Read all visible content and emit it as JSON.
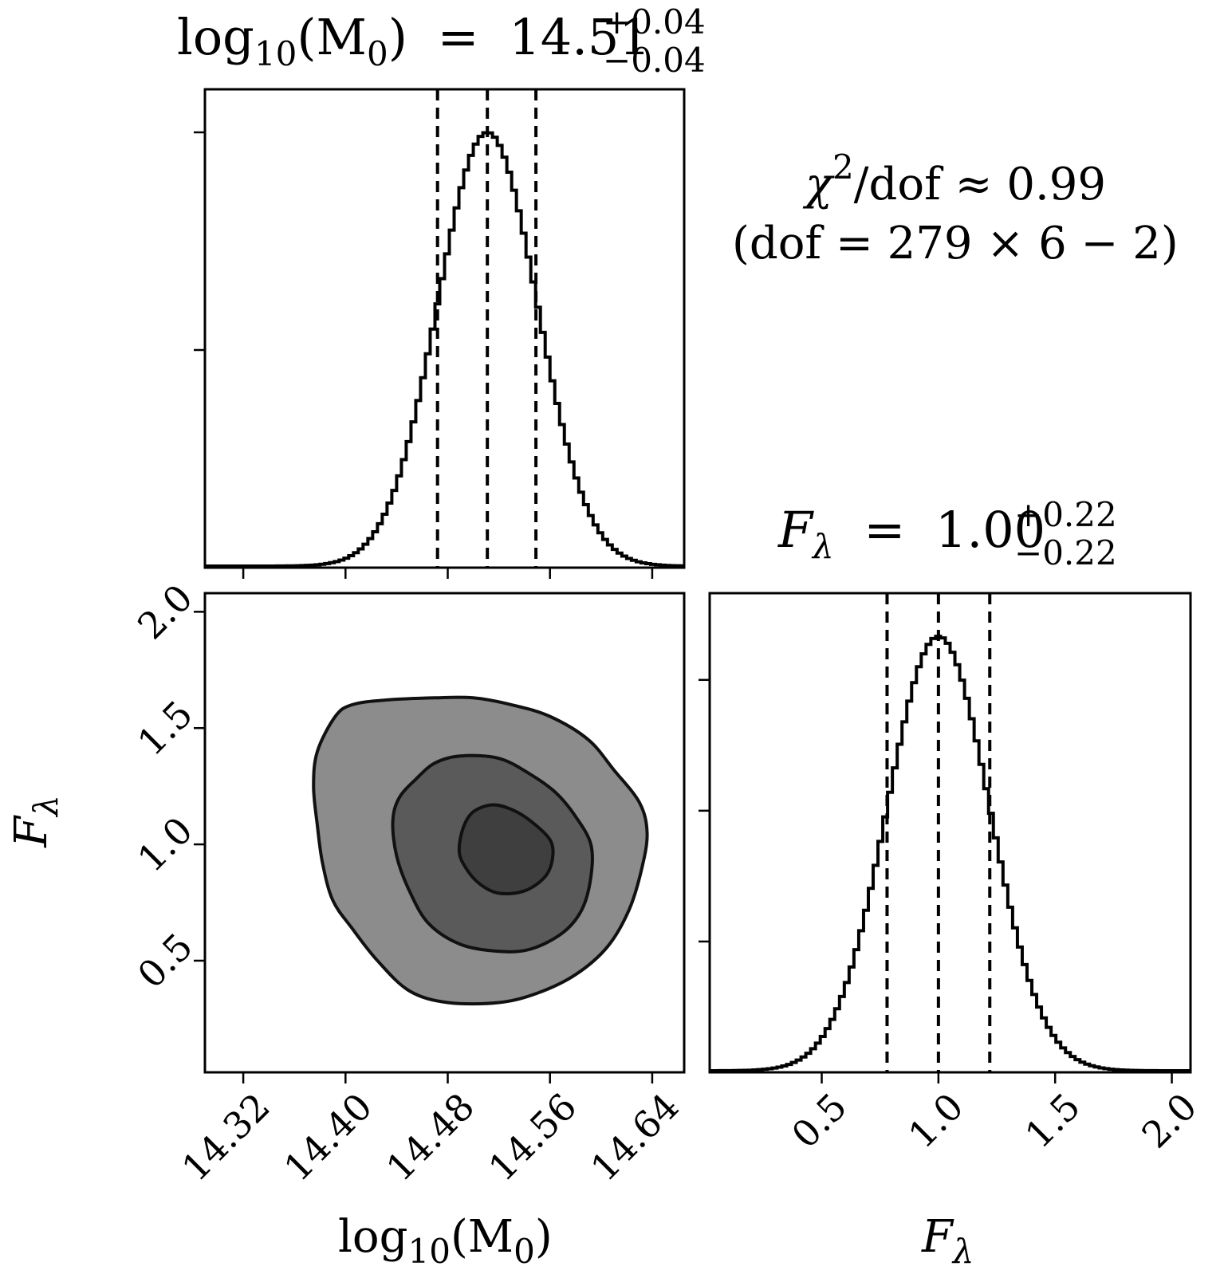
{
  "chart_data": {
    "type": "corner",
    "parameters": [
      {
        "key": "logM0",
        "label": "log10(M0)",
        "label_base": "log",
        "label_base_sub": "10",
        "label_arg": "(M",
        "label_arg_sub": "0",
        "label_close": ")",
        "axis_range": [
          14.29,
          14.665
        ],
        "ticks": [
          14.32,
          14.4,
          14.48,
          14.56,
          14.64
        ],
        "tick_labels": [
          "14.32",
          "14.40",
          "14.48",
          "14.56",
          "14.64"
        ],
        "median": 14.51,
        "quantiles": [
          14.472,
          14.511,
          14.549
        ],
        "title_value": "14.51",
        "err_plus": "+0.04",
        "err_minus": "−0.04",
        "marginal_mean": 14.511,
        "marginal_sigma": 0.039
      },
      {
        "key": "F_lambda",
        "label": "F_λ",
        "label_base": "F",
        "label_sub": "λ",
        "axis_range": [
          0.02,
          2.08
        ],
        "ticks": [
          0.5,
          1.0,
          1.5,
          2.0
        ],
        "tick_labels": [
          "0.5",
          "1.0",
          "1.5",
          "2.0"
        ],
        "median": 1.0,
        "quantiles": [
          0.78,
          1.0,
          1.22
        ],
        "title_value": "1.00",
        "err_plus": "+0.22",
        "err_minus": "−0.22",
        "marginal_mean": 1.0,
        "marginal_sigma": 0.22
      }
    ],
    "joint": {
      "x": "logM0",
      "y": "F_lambda",
      "contour_levels": 3,
      "fill_colors": [
        "#8c8c8c",
        "#5a5a5a",
        "#3f3f3f"
      ],
      "contours": [
        [
          [
            14.392,
            1.55
          ],
          [
            14.405,
            1.6
          ],
          [
            14.43,
            1.62
          ],
          [
            14.47,
            1.63
          ],
          [
            14.5,
            1.63
          ],
          [
            14.53,
            1.6
          ],
          [
            14.56,
            1.55
          ],
          [
            14.59,
            1.45
          ],
          [
            14.61,
            1.32
          ],
          [
            14.63,
            1.18
          ],
          [
            14.636,
            1.05
          ],
          [
            14.632,
            0.9
          ],
          [
            14.622,
            0.72
          ],
          [
            14.605,
            0.56
          ],
          [
            14.58,
            0.44
          ],
          [
            14.55,
            0.36
          ],
          [
            14.52,
            0.32
          ],
          [
            14.48,
            0.32
          ],
          [
            14.45,
            0.37
          ],
          [
            14.425,
            0.5
          ],
          [
            14.405,
            0.64
          ],
          [
            14.39,
            0.76
          ],
          [
            14.382,
            0.92
          ],
          [
            14.378,
            1.08
          ],
          [
            14.375,
            1.25
          ],
          [
            14.378,
            1.4
          ]
        ],
        [
          [
            14.455,
            1.28
          ],
          [
            14.47,
            1.35
          ],
          [
            14.49,
            1.38
          ],
          [
            14.52,
            1.37
          ],
          [
            14.545,
            1.3
          ],
          [
            14.565,
            1.22
          ],
          [
            14.58,
            1.12
          ],
          [
            14.592,
            1.0
          ],
          [
            14.592,
            0.86
          ],
          [
            14.585,
            0.72
          ],
          [
            14.57,
            0.62
          ],
          [
            14.545,
            0.55
          ],
          [
            14.52,
            0.54
          ],
          [
            14.49,
            0.57
          ],
          [
            14.465,
            0.66
          ],
          [
            14.45,
            0.8
          ],
          [
            14.44,
            0.95
          ],
          [
            14.437,
            1.1
          ],
          [
            14.442,
            1.2
          ]
        ],
        [
          [
            14.492,
            1.07
          ],
          [
            14.5,
            1.14
          ],
          [
            14.515,
            1.17
          ],
          [
            14.53,
            1.15
          ],
          [
            14.545,
            1.1
          ],
          [
            14.56,
            1.02
          ],
          [
            14.562,
            0.94
          ],
          [
            14.556,
            0.86
          ],
          [
            14.54,
            0.8
          ],
          [
            14.52,
            0.79
          ],
          [
            14.505,
            0.83
          ],
          [
            14.494,
            0.9
          ],
          [
            14.489,
            0.97
          ]
        ]
      ]
    },
    "annotation": {
      "line1_chi": "χ",
      "line1_sup": "2",
      "line1_rest": "/dof ≈ 0.99",
      "line2": "(dof = 279 × 6 − 2)"
    },
    "equals": "="
  }
}
